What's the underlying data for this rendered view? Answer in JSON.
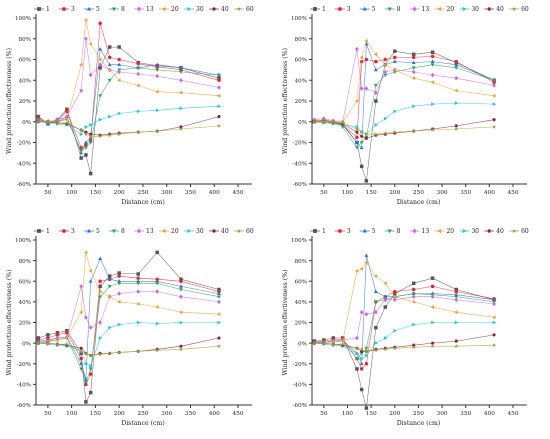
{
  "legend_labels": [
    "1",
    "3",
    "5",
    "8",
    "13",
    "20",
    "30",
    "40",
    "60"
  ],
  "series_colors": [
    "#555555",
    "#e8262b",
    "#2a6fdb",
    "#2ba35a",
    "#c86be0",
    "#e8a033",
    "#24c4d6",
    "#8b2332",
    "#9aa33a"
  ],
  "series_markers": [
    "square",
    "circle",
    "triangle-up",
    "triangle-down",
    "diamond",
    "triangle-left",
    "triangle-right",
    "hexagon",
    "star"
  ],
  "chart_data": [
    {
      "type": "line",
      "ylabel": "Wind protection effectiveness (%)",
      "xlabel": "Distance (cm)",
      "xlim": [
        25,
        450
      ],
      "ylim": [
        -60,
        100
      ],
      "xticks": [
        "50",
        "100",
        "150",
        "200",
        "250",
        "300",
        "350",
        "400",
        "450"
      ],
      "yticks": [
        "-60%",
        "-40%",
        "-20%",
        "0%",
        "20%",
        "40%",
        "60%",
        "80%",
        "100%"
      ],
      "x": [
        30,
        50,
        70,
        90,
        120,
        130,
        140,
        160,
        180,
        200,
        240,
        280,
        330,
        410
      ],
      "series": [
        {
          "name": "1",
          "values": [
            5,
            -2,
            2,
            12,
            -35,
            -32,
            -50,
            52,
            72,
            72,
            57,
            54,
            52,
            42
          ]
        },
        {
          "name": "3",
          "values": [
            4,
            -1,
            1,
            10,
            -25,
            -22,
            -18,
            95,
            62,
            60,
            56,
            53,
            50,
            40
          ]
        },
        {
          "name": "5",
          "values": [
            3,
            -2,
            0,
            5,
            -30,
            -20,
            -15,
            70,
            55,
            55,
            52,
            55,
            52,
            45
          ]
        },
        {
          "name": "8",
          "values": [
            2,
            -1,
            0,
            3,
            -28,
            -25,
            -20,
            25,
            40,
            50,
            52,
            50,
            48,
            45
          ]
        },
        {
          "name": "13",
          "values": [
            1,
            0,
            2,
            5,
            30,
            80,
            45,
            55,
            50,
            48,
            46,
            44,
            40,
            33
          ]
        },
        {
          "name": "20",
          "values": [
            0,
            1,
            0,
            2,
            55,
            98,
            75,
            60,
            50,
            40,
            35,
            29,
            28,
            25
          ]
        },
        {
          "name": "30",
          "values": [
            0,
            -1,
            -2,
            -3,
            -12,
            -5,
            -3,
            2,
            5,
            8,
            10,
            11,
            13,
            15
          ]
        },
        {
          "name": "40",
          "values": [
            0,
            0,
            -1,
            -2,
            -8,
            -10,
            -12,
            -13,
            -12,
            -11,
            -10,
            -9,
            -5,
            5
          ]
        },
        {
          "name": "60",
          "values": [
            0,
            0,
            -1,
            -1,
            -8,
            -12,
            -14,
            -14,
            -13,
            -12,
            -10,
            -9,
            -7,
            -4
          ]
        }
      ]
    },
    {
      "type": "line",
      "ylabel": "Wind protection effectiveness (%)",
      "xlabel": "Distance (cm)",
      "xlim": [
        25,
        450
      ],
      "ylim": [
        -60,
        100
      ],
      "xticks": [
        "50",
        "100",
        "150",
        "200",
        "250",
        "300",
        "350",
        "400",
        "450"
      ],
      "yticks": [
        "-60%",
        "-40%",
        "-20%",
        "0%",
        "20%",
        "40%",
        "60%",
        "80%",
        "100%"
      ],
      "x": [
        30,
        50,
        70,
        90,
        120,
        130,
        140,
        160,
        180,
        200,
        240,
        280,
        330,
        410
      ],
      "series": [
        {
          "name": "1",
          "values": [
            0,
            2,
            0,
            -2,
            -20,
            -43,
            -57,
            20,
            55,
            68,
            65,
            67,
            57,
            40
          ]
        },
        {
          "name": "3",
          "values": [
            1,
            1,
            0,
            -3,
            -15,
            58,
            60,
            58,
            60,
            62,
            62,
            63,
            58,
            38
          ]
        },
        {
          "name": "5",
          "values": [
            0,
            0,
            -1,
            -3,
            -20,
            -25,
            75,
            50,
            55,
            58,
            57,
            58,
            55,
            40
          ]
        },
        {
          "name": "8",
          "values": [
            0,
            0,
            0,
            -5,
            -25,
            -20,
            -15,
            35,
            45,
            48,
            52,
            55,
            52,
            40
          ]
        },
        {
          "name": "13",
          "values": [
            2,
            3,
            1,
            0,
            70,
            32,
            32,
            28,
            48,
            50,
            48,
            45,
            42,
            35
          ]
        },
        {
          "name": "20",
          "values": [
            0,
            1,
            0,
            0,
            20,
            62,
            78,
            65,
            55,
            50,
            42,
            38,
            30,
            25
          ]
        },
        {
          "name": "30",
          "values": [
            0,
            -1,
            -2,
            -3,
            -5,
            -10,
            -12,
            -3,
            3,
            10,
            15,
            17,
            18,
            17
          ]
        },
        {
          "name": "40",
          "values": [
            0,
            0,
            -1,
            -2,
            -10,
            -14,
            -16,
            -13,
            -12,
            -11,
            -9,
            -7,
            -4,
            2
          ]
        },
        {
          "name": "60",
          "values": [
            0,
            0,
            -1,
            -1,
            -7,
            -10,
            -12,
            -12,
            -11,
            -10,
            -9,
            -8,
            -7,
            -5
          ]
        }
      ]
    },
    {
      "type": "line",
      "ylabel": "Wind protection effectiveness (%)",
      "xlabel": "Distance (cm)",
      "xlim": [
        25,
        450
      ],
      "ylim": [
        -60,
        100
      ],
      "xticks": [
        "50",
        "100",
        "150",
        "200",
        "250",
        "300",
        "350",
        "400",
        "450"
      ],
      "yticks": [
        "-60%",
        "-40%",
        "-20%",
        "0%",
        "20%",
        "40%",
        "60%",
        "80%",
        "100%"
      ],
      "x": [
        30,
        50,
        70,
        90,
        120,
        130,
        140,
        160,
        180,
        200,
        240,
        280,
        330,
        410
      ],
      "series": [
        {
          "name": "1",
          "values": [
            5,
            8,
            10,
            12,
            -10,
            -57,
            -48,
            55,
            65,
            68,
            67,
            88,
            62,
            52
          ]
        },
        {
          "name": "3",
          "values": [
            3,
            5,
            8,
            10,
            -15,
            -40,
            -30,
            60,
            62,
            65,
            63,
            62,
            60,
            50
          ]
        },
        {
          "name": "5",
          "values": [
            2,
            3,
            5,
            6,
            -20,
            -35,
            60,
            82,
            62,
            60,
            60,
            60,
            55,
            48
          ]
        },
        {
          "name": "8",
          "values": [
            1,
            2,
            3,
            5,
            -25,
            -38,
            -25,
            45,
            55,
            58,
            58,
            58,
            52,
            45
          ]
        },
        {
          "name": "13",
          "values": [
            0,
            2,
            5,
            5,
            55,
            25,
            15,
            20,
            45,
            48,
            50,
            50,
            45,
            40
          ]
        },
        {
          "name": "20",
          "values": [
            0,
            1,
            3,
            5,
            30,
            88,
            70,
            50,
            45,
            40,
            38,
            35,
            30,
            28
          ]
        },
        {
          "name": "30",
          "values": [
            0,
            -1,
            -2,
            -3,
            -8,
            -20,
            -22,
            5,
            15,
            18,
            20,
            19,
            20,
            20
          ]
        },
        {
          "name": "40",
          "values": [
            0,
            0,
            -1,
            -2,
            -5,
            -10,
            -12,
            -10,
            -10,
            -9,
            -8,
            -6,
            -3,
            5
          ]
        },
        {
          "name": "60",
          "values": [
            0,
            0,
            -1,
            -1,
            -8,
            -10,
            -12,
            -11,
            -10,
            -9,
            -8,
            -7,
            -6,
            -3
          ]
        }
      ]
    },
    {
      "type": "line",
      "ylabel": "Wind protection effectiveness (%)",
      "xlabel": "Distance (cm)",
      "xlim": [
        25,
        450
      ],
      "ylim": [
        -60,
        100
      ],
      "xticks": [
        "50",
        "100",
        "150",
        "200",
        "250",
        "300",
        "350",
        "400",
        "450"
      ],
      "yticks": [
        "-60%",
        "-40%",
        "-20%",
        "0%",
        "20%",
        "40%",
        "60%",
        "80%",
        "100%"
      ],
      "x": [
        30,
        50,
        70,
        90,
        120,
        130,
        140,
        160,
        180,
        200,
        240,
        280,
        330,
        410
      ],
      "series": [
        {
          "name": "1",
          "values": [
            2,
            3,
            5,
            5,
            -25,
            -45,
            -63,
            15,
            35,
            48,
            58,
            63,
            52,
            42
          ]
        },
        {
          "name": "3",
          "values": [
            1,
            2,
            3,
            4,
            -15,
            -25,
            -20,
            40,
            45,
            50,
            52,
            55,
            50,
            43
          ]
        },
        {
          "name": "5",
          "values": [
            1,
            1,
            2,
            3,
            -10,
            -20,
            85,
            50,
            45,
            45,
            48,
            48,
            47,
            42
          ]
        },
        {
          "name": "8",
          "values": [
            0,
            1,
            2,
            2,
            -15,
            -10,
            -5,
            40,
            42,
            45,
            48,
            47,
            45,
            40
          ]
        },
        {
          "name": "13",
          "values": [
            0,
            1,
            2,
            3,
            5,
            30,
            28,
            30,
            42,
            42,
            45,
            45,
            42,
            38
          ]
        },
        {
          "name": "20",
          "values": [
            0,
            0,
            1,
            2,
            70,
            72,
            78,
            65,
            58,
            45,
            40,
            35,
            30,
            25
          ]
        },
        {
          "name": "30",
          "values": [
            0,
            -1,
            -2,
            -3,
            -10,
            -15,
            -12,
            0,
            5,
            12,
            18,
            20,
            20,
            20
          ]
        },
        {
          "name": "40",
          "values": [
            0,
            0,
            -1,
            -2,
            -5,
            -8,
            -8,
            -6,
            -5,
            -4,
            -2,
            0,
            2,
            8
          ]
        },
        {
          "name": "60",
          "values": [
            0,
            0,
            -1,
            -1,
            -5,
            -6,
            -8,
            -7,
            -6,
            -5,
            -4,
            -3,
            -3,
            -2
          ]
        }
      ]
    }
  ]
}
